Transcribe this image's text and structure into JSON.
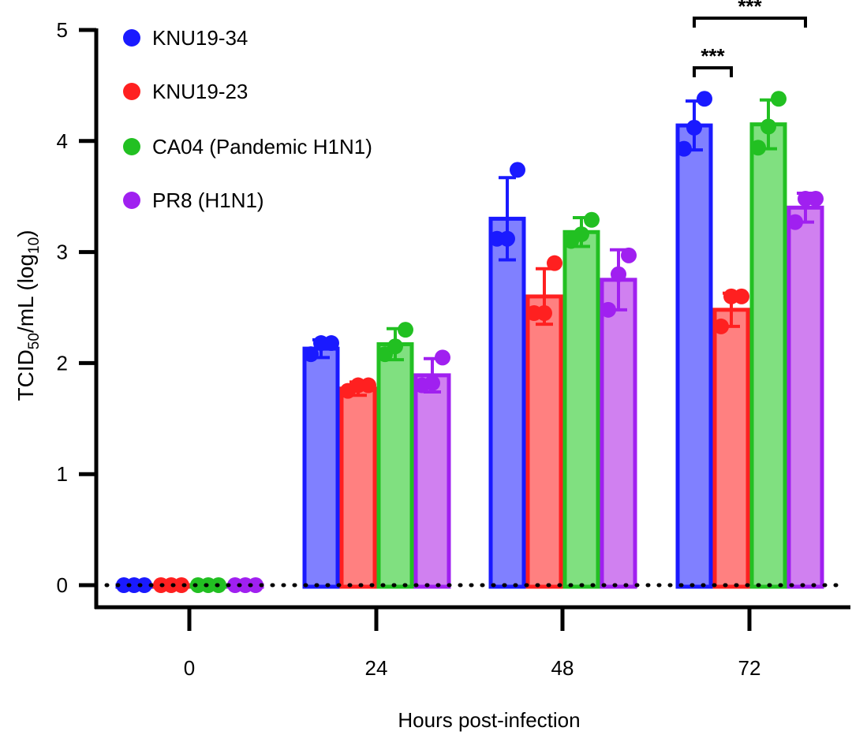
{
  "chart_data": {
    "type": "bar",
    "title": "",
    "xlabel": "Hours post-infection",
    "ylabel_main": "TCID",
    "ylabel_sub": "50",
    "ylabel_mid": "/mL (log",
    "ylabel_sub2": "10",
    "ylabel_end": ")",
    "categories": [
      "0",
      "24",
      "48",
      "72"
    ],
    "ylim": [
      0,
      5
    ],
    "yticks": [
      "0",
      "1",
      "2",
      "3",
      "4",
      "5"
    ],
    "legend_placement": "top-left",
    "series": [
      {
        "name": "KNU19-34",
        "color": "#1a1aff",
        "fill": "#8080ff",
        "values": [
          0,
          2.13,
          3.3,
          4.14
        ],
        "sd": [
          0,
          0.08,
          0.37,
          0.22
        ],
        "points": [
          [
            0,
            0,
            0
          ],
          [
            2.08,
            2.18,
            2.18
          ],
          [
            3.12,
            3.12,
            3.74
          ],
          [
            3.93,
            4.12,
            4.38
          ]
        ]
      },
      {
        "name": "KNU19-23",
        "color": "#ff2020",
        "fill": "#ff8080",
        "values": [
          0,
          1.77,
          2.6,
          2.48
        ],
        "sd": [
          0,
          0.06,
          0.25,
          0.15
        ],
        "points": [
          [
            0,
            0,
            0
          ],
          [
            1.75,
            1.8,
            1.8
          ],
          [
            2.45,
            2.45,
            2.9
          ],
          [
            2.33,
            2.6,
            2.6
          ]
        ]
      },
      {
        "name": "CA04 (Pandemic H1N1)",
        "color": "#22c022",
        "fill": "#80e080",
        "values": [
          0,
          2.17,
          3.18,
          4.15
        ],
        "sd": [
          0,
          0.14,
          0.13,
          0.22
        ],
        "points": [
          [
            0,
            0,
            0
          ],
          [
            2.08,
            2.15,
            2.3
          ],
          [
            3.1,
            3.16,
            3.29
          ],
          [
            3.94,
            4.13,
            4.38
          ]
        ]
      },
      {
        "name": "PR8 (H1N1)",
        "color": "#a020f0",
        "fill": "#d080f0",
        "values": [
          0,
          1.89,
          2.75,
          3.4
        ],
        "sd": [
          0,
          0.15,
          0.27,
          0.13
        ],
        "points": [
          [
            0,
            0,
            0
          ],
          [
            1.8,
            1.82,
            2.05
          ],
          [
            2.48,
            2.8,
            2.97
          ],
          [
            3.27,
            3.48,
            3.48
          ]
        ]
      }
    ],
    "annotations": [
      {
        "text": "***",
        "group": "72",
        "from_series": 0,
        "to_series": 1
      },
      {
        "text": "***",
        "group": "72",
        "from_series": 0,
        "to_series": 3
      }
    ]
  }
}
